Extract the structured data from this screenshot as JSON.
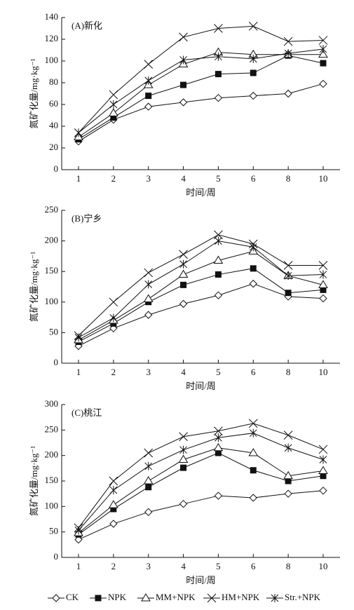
{
  "chart_data": [
    {
      "type": "line",
      "title": "(A)新化",
      "xlabel": "时间/周",
      "ylabel": "氮矿化量/mg·kg⁻¹",
      "categories": [
        "1",
        "2",
        "3",
        "4",
        "5",
        "6",
        "8",
        "10"
      ],
      "ylim": [
        0,
        140
      ],
      "yticks": [
        0,
        20,
        40,
        60,
        80,
        100,
        120,
        140
      ],
      "series": [
        {
          "name": "CK",
          "marker": "diamond",
          "color": "#111",
          "values": [
            26,
            46,
            58,
            62,
            66,
            68,
            70,
            79
          ]
        },
        {
          "name": "NPK",
          "marker": "square",
          "color": "#111",
          "values": [
            28,
            48,
            68,
            78,
            88,
            89,
            105,
            98
          ]
        },
        {
          "name": "MM+NPK",
          "marker": "triangle",
          "color": "#111",
          "values": [
            30,
            52,
            78,
            97,
            108,
            106,
            106,
            106
          ]
        },
        {
          "name": "HM+NPK",
          "marker": "cross",
          "color": "#111",
          "values": [
            34,
            69,
            97,
            122,
            130,
            132,
            118,
            119
          ]
        },
        {
          "name": "Str.+NPK",
          "marker": "star",
          "color": "#111",
          "values": [
            34,
            60,
            82,
            101,
            104,
            102,
            107,
            111
          ]
        }
      ]
    },
    {
      "type": "line",
      "title": "(B)宁乡",
      "xlabel": "时间/周",
      "ylabel": "氮矿化量/mg·kg⁻¹",
      "categories": [
        "1",
        "2",
        "3",
        "4",
        "5",
        "6",
        "8",
        "10"
      ],
      "ylim": [
        0,
        250
      ],
      "yticks": [
        0,
        50,
        100,
        150,
        200,
        250
      ],
      "series": [
        {
          "marker": "diamond",
          "color": "#111",
          "values": [
            28,
            57,
            79,
            97,
            111,
            130,
            109,
            106
          ]
        },
        {
          "marker": "square",
          "color": "#111",
          "values": [
            35,
            65,
            100,
            128,
            145,
            155,
            115,
            120
          ]
        },
        {
          "marker": "triangle",
          "color": "#111",
          "values": [
            38,
            70,
            105,
            145,
            168,
            183,
            143,
            128
          ]
        },
        {
          "marker": "cross",
          "color": "#111",
          "values": [
            45,
            100,
            148,
            178,
            210,
            195,
            160,
            160
          ]
        },
        {
          "marker": "star",
          "color": "#111",
          "values": [
            42,
            74,
            129,
            162,
            200,
            190,
            143,
            145
          ]
        }
      ]
    },
    {
      "type": "line",
      "title": "(C)桃江",
      "xlabel": "时间/周",
      "ylabel": "氮矿化量/mg·kg⁻¹",
      "categories": [
        "1",
        "2",
        "3",
        "4",
        "5",
        "6",
        "8",
        "10"
      ],
      "ylim": [
        0,
        300
      ],
      "yticks": [
        0,
        50,
        100,
        150,
        200,
        250,
        300
      ],
      "series": [
        {
          "marker": "diamond",
          "color": "#111",
          "values": [
            35,
            66,
            89,
            105,
            121,
            117,
            125,
            131
          ]
        },
        {
          "marker": "square",
          "color": "#111",
          "values": [
            45,
            95,
            138,
            176,
            205,
            171,
            150,
            160
          ]
        },
        {
          "marker": "triangle",
          "color": "#111",
          "values": [
            48,
            103,
            150,
            192,
            215,
            205,
            160,
            170
          ]
        },
        {
          "marker": "cross",
          "color": "#111",
          "values": [
            58,
            150,
            205,
            237,
            248,
            263,
            240,
            212
          ]
        },
        {
          "marker": "star",
          "color": "#111",
          "values": [
            53,
            132,
            179,
            211,
            235,
            244,
            215,
            192
          ]
        }
      ]
    }
  ]
}
